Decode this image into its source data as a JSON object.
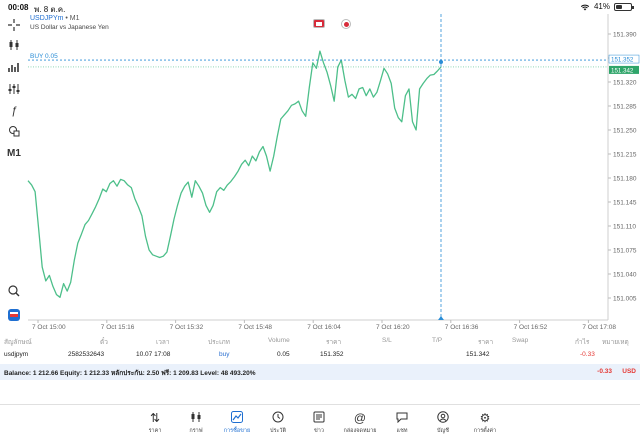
{
  "status": {
    "time": "00:08",
    "date": "พ. 8 ต.ค.",
    "battery": "41%"
  },
  "chart": {
    "symbol": "USDJPYm",
    "timeframe": "• M1",
    "description": "US Dollar vs Japanese Yen",
    "buy_label": "BUY 0.05",
    "price_badge_top": "151.352",
    "price_badge_bottom": "151.342"
  },
  "toolbar": {
    "timeframe_label": "M1"
  },
  "chart_data": {
    "type": "line",
    "y_ticks": [
      "151.390",
      "151.355",
      "151.320",
      "151.285",
      "151.250",
      "151.215",
      "151.180",
      "151.145",
      "151.110",
      "151.075",
      "151.040",
      "151.005"
    ],
    "x_ticks": [
      "7 Oct 15:00",
      "7 Oct 15:16",
      "7 Oct 15:32",
      "7 Oct 15:48",
      "7 Oct 16:04",
      "7 Oct 16:20",
      "7 Oct 16:36",
      "7 Oct 16:52",
      "7 Oct 17:08",
      "7 Oct 17:24",
      "7 Oct 17:40",
      "7 Oct 17:56"
    ],
    "ylim": [
      150.985,
      151.405
    ],
    "values": [
      151.176,
      151.17,
      151.16,
      151.105,
      151.05,
      151.03,
      151.038,
      151.022,
      151.01,
      151.006,
      151.026,
      151.015,
      151.028,
      151.06,
      151.085,
      151.098,
      151.112,
      151.118,
      151.128,
      151.138,
      151.15,
      151.164,
      151.16,
      151.172,
      151.176,
      151.168,
      151.178,
      151.176,
      151.17,
      151.166,
      151.15,
      151.138,
      151.125,
      151.095,
      151.075,
      151.068,
      151.066,
      151.064,
      151.066,
      151.072,
      151.095,
      151.12,
      151.14,
      151.158,
      151.168,
      151.174,
      151.152,
      151.176,
      151.168,
      151.158,
      151.14,
      151.13,
      151.14,
      151.16,
      151.166,
      151.162,
      151.17,
      151.175,
      151.182,
      151.19,
      151.2,
      151.206,
      151.198,
      151.212,
      151.205,
      151.218,
      151.226,
      151.212,
      151.19,
      151.212,
      151.24,
      151.266,
      151.272,
      151.278,
      151.286,
      151.288,
      151.292,
      151.278,
      151.27,
      151.312,
      151.348,
      151.34,
      151.365,
      151.348,
      151.334,
      151.315,
      151.292,
      151.342,
      151.352,
      151.322,
      151.298,
      151.302,
      151.296,
      151.31,
      151.312,
      151.3,
      151.31,
      151.298,
      151.305,
      151.322,
      151.34,
      151.332,
      151.318,
      151.282,
      151.268,
      151.262,
      151.3,
      151.31,
      151.262,
      151.25,
      151.31,
      151.318,
      151.325,
      151.33,
      151.331,
      151.336,
      151.342
    ],
    "buy_level": 151.352,
    "grid": false,
    "line_color": "#4dbf8a",
    "buy_color": "#2a8dd6"
  },
  "trade_table": {
    "headers": {
      "symbol": "สัญลักษณ์",
      "ticket": "ตั๋ว",
      "time": "เวลา",
      "type": "ประเภท",
      "volume": "Volume",
      "price": "ราคา",
      "sl": "S/L",
      "tp": "T/P",
      "cur_price": "ราคา",
      "swap": "Swap",
      "profit": "กำไร",
      "comment": "หมายเหตุ"
    },
    "row": {
      "symbol": "usdjpym",
      "ticket": "2582532643",
      "time": "10.07 17:08",
      "type": "buy",
      "volume": "0.05",
      "price": "151.352",
      "cur_price": "151.342",
      "profit": "-0.33"
    }
  },
  "balance": {
    "text": "Balance: 1 212.66 Equity: 1 212.33 หลักประกัน: 2.50 ฟรี: 1 209.83 Level: 48 493.20%",
    "profit": "-0.33",
    "currency": "USD"
  },
  "tabs": [
    {
      "label": "ราคา",
      "icon": "arrows-updown-icon"
    },
    {
      "label": "กราฟ",
      "icon": "candles-icon"
    },
    {
      "label": "การซื้อขาย",
      "icon": "trade-chart-icon",
      "active": true
    },
    {
      "label": "ประวัติ",
      "icon": "history-icon"
    },
    {
      "label": "ข่าว",
      "icon": "news-icon"
    },
    {
      "label": "กล่องจดหมาย",
      "icon": "mail-at-icon"
    },
    {
      "label": "แชท",
      "icon": "chat-icon"
    },
    {
      "label": "บัญชี",
      "icon": "account-icon"
    },
    {
      "label": "การตั้งค่า",
      "icon": "settings-gear-icon"
    }
  ]
}
